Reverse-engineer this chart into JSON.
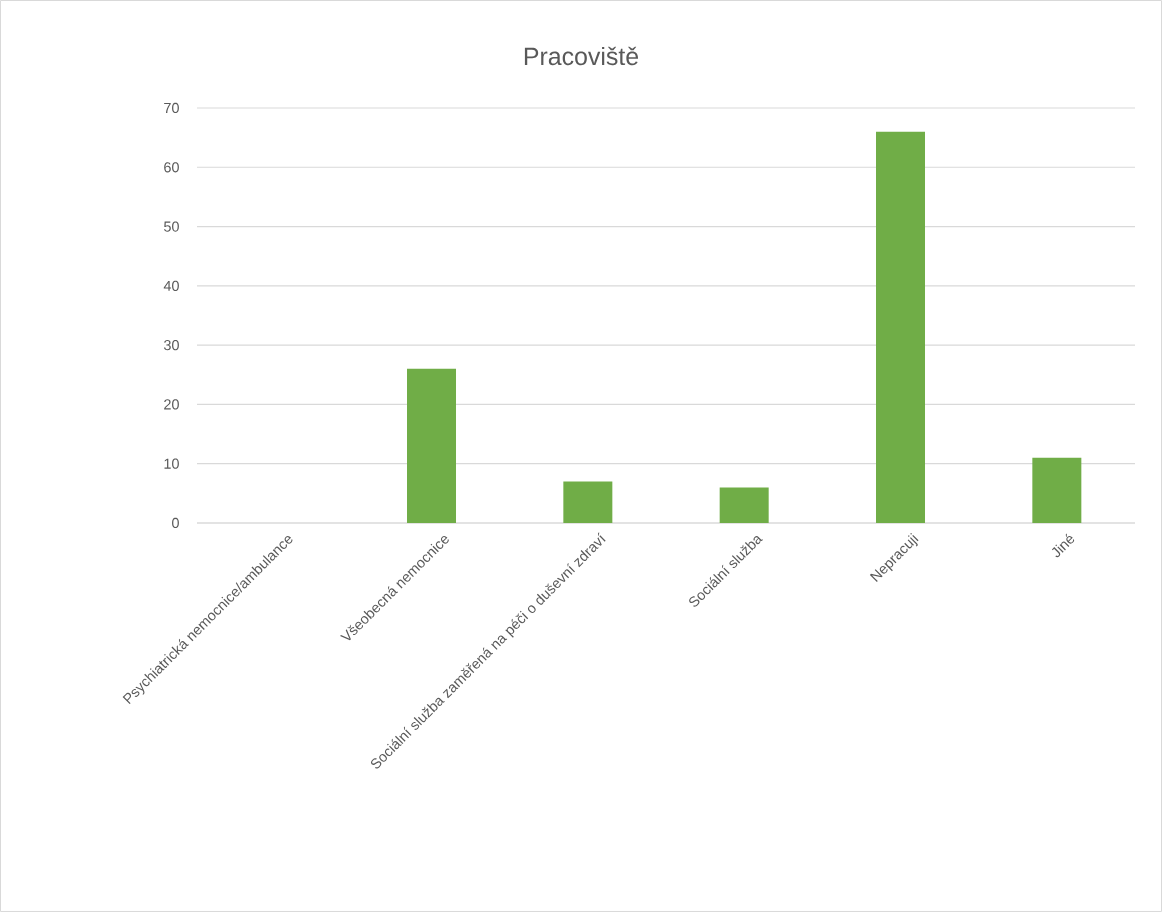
{
  "chart_data": {
    "type": "bar",
    "title": "Pracoviště",
    "categories": [
      "Psychiatrická nemocnice/ambulance",
      "Všeobecná nemocnice",
      "Sociální služba zaměřená na péči o duševní zdraví",
      "Sociální služba",
      "Nepracuji",
      "Jiné"
    ],
    "values": [
      0,
      26,
      7,
      6,
      66,
      11
    ],
    "color": "#70ad47",
    "ylim": [
      0,
      70
    ],
    "yticks": [
      0,
      10,
      20,
      30,
      40,
      50,
      60,
      70
    ],
    "grid": "y"
  }
}
